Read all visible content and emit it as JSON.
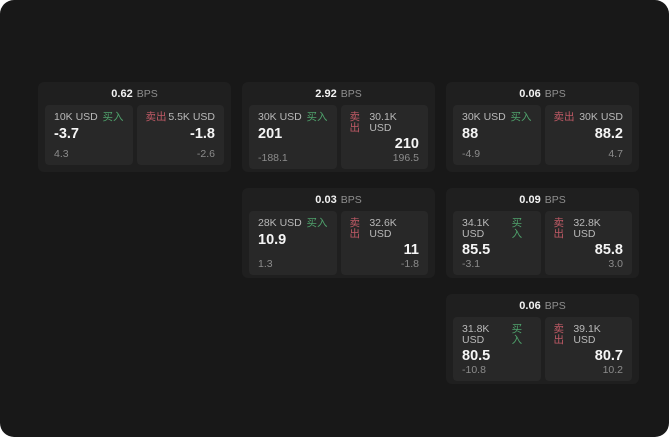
{
  "colors": {
    "background": "#181818",
    "card": "#1f1f1f",
    "panel": "#282828",
    "buy": "#4fa26c",
    "sell": "#c05a66",
    "value_text": "#f5f5f5",
    "label_text": "#b9b9b9",
    "sub_text": "#8c8c8c"
  },
  "cards": [
    {
      "bps_value": "0.62",
      "bps_unit": "BPS",
      "buy": {
        "amount": "10K USD",
        "action": "买入",
        "value": "-3.7",
        "sub": "4.3"
      },
      "sell": {
        "action": "卖出",
        "amount": "5.5K USD",
        "value": "-1.8",
        "sub": "-2.6"
      }
    },
    {
      "bps_value": "2.92",
      "bps_unit": "BPS",
      "buy": {
        "amount": "30K USD",
        "action": "买入",
        "value": "201",
        "sub": "-188.1"
      },
      "sell": {
        "action": "卖出",
        "amount": "30.1K USD",
        "value": "210",
        "sub": "196.5"
      }
    },
    {
      "bps_value": "0.06",
      "bps_unit": "BPS",
      "buy": {
        "amount": "30K USD",
        "action": "买入",
        "value": "88",
        "sub": "-4.9"
      },
      "sell": {
        "action": "卖出",
        "amount": "30K USD",
        "value": "88.2",
        "sub": "4.7"
      }
    },
    {
      "bps_value": "0.03",
      "bps_unit": "BPS",
      "buy": {
        "amount": "28K USD",
        "action": "买入",
        "value": "10.9",
        "sub": "1.3"
      },
      "sell": {
        "action": "卖出",
        "amount": "32.6K USD",
        "value": "11",
        "sub": "-1.8"
      }
    },
    {
      "bps_value": "0.09",
      "bps_unit": "BPS",
      "buy": {
        "amount": "34.1K USD",
        "action": "买入",
        "value": "85.5",
        "sub": "-3.1"
      },
      "sell": {
        "action": "卖出",
        "amount": "32.8K USD",
        "value": "85.8",
        "sub": "3.0"
      }
    },
    {
      "bps_value": "0.06",
      "bps_unit": "BPS",
      "buy": {
        "amount": "31.8K USD",
        "action": "买入",
        "value": "80.5",
        "sub": "-10.8"
      },
      "sell": {
        "action": "卖出",
        "amount": "39.1K USD",
        "value": "80.7",
        "sub": "10.2"
      }
    }
  ]
}
